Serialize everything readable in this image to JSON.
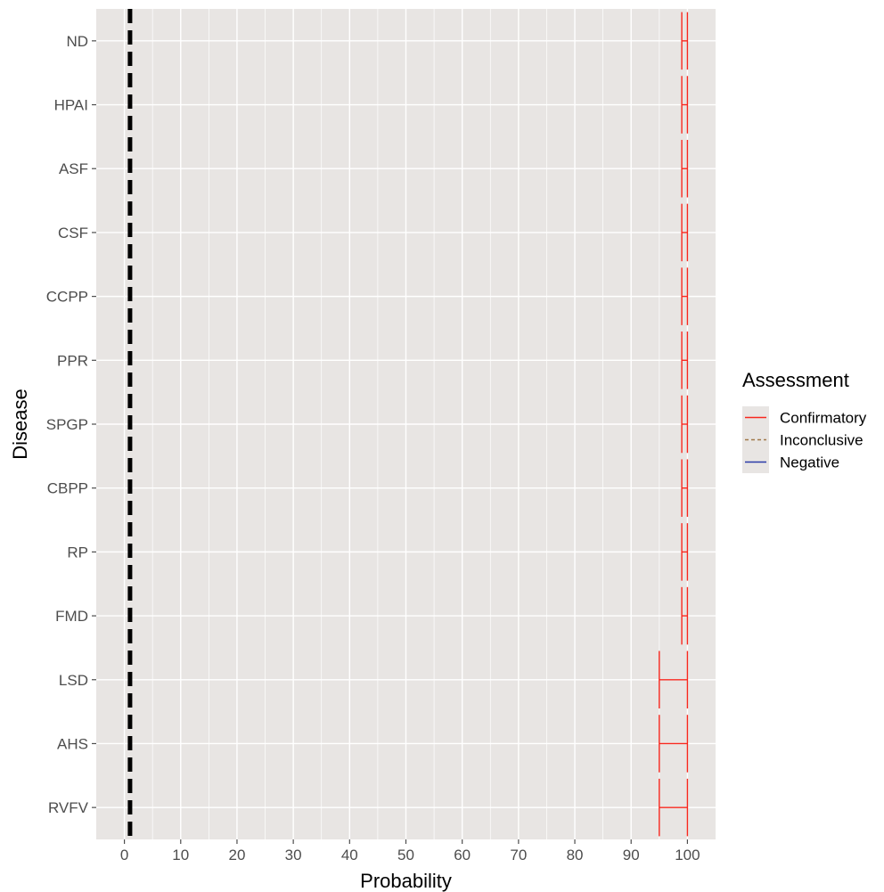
{
  "chart_data": {
    "type": "errorbar",
    "xlabel": "Probability",
    "ylabel": "Disease",
    "xlim": [
      -5,
      105
    ],
    "x_ticks": [
      0,
      10,
      20,
      30,
      40,
      50,
      60,
      70,
      80,
      90,
      100
    ],
    "grid": true,
    "legend_placement": "right",
    "reference_line": {
      "x": 1,
      "style": "dashed",
      "color": "#000000"
    },
    "categories": [
      "ND",
      "HPAI",
      "ASF",
      "CSF",
      "CCPP",
      "PPR",
      "SPGP",
      "CBPP",
      "RP",
      "FMD",
      "LSD",
      "AHS",
      "RVFV"
    ],
    "series": [
      {
        "name": "Confirmatory",
        "color": "#f8281e",
        "intervals": [
          {
            "category": "ND",
            "low": 99,
            "high": 100
          },
          {
            "category": "HPAI",
            "low": 99,
            "high": 100
          },
          {
            "category": "ASF",
            "low": 99,
            "high": 100
          },
          {
            "category": "CSF",
            "low": 99,
            "high": 100
          },
          {
            "category": "CCPP",
            "low": 99,
            "high": 100
          },
          {
            "category": "PPR",
            "low": 99,
            "high": 100
          },
          {
            "category": "SPGP",
            "low": 99,
            "high": 100
          },
          {
            "category": "CBPP",
            "low": 99,
            "high": 100
          },
          {
            "category": "RP",
            "low": 99,
            "high": 100
          },
          {
            "category": "FMD",
            "low": 99,
            "high": 100
          },
          {
            "category": "LSD",
            "low": 95,
            "high": 100
          },
          {
            "category": "AHS",
            "low": 95,
            "high": 100
          },
          {
            "category": "RVFV",
            "low": 95,
            "high": 100
          }
        ]
      },
      {
        "name": "Inconclusive",
        "color": "#a0784a",
        "dashed": true,
        "intervals": []
      },
      {
        "name": "Negative",
        "color": "#2a3aa8",
        "intervals": []
      }
    ],
    "legend": {
      "title": "Assessment",
      "entries": [
        "Confirmatory",
        "Inconclusive",
        "Negative"
      ]
    },
    "colors": {
      "panel_background": "#e8e5e3",
      "grid": "#ffffff",
      "legend_key_background": "#e8e5e3"
    }
  }
}
